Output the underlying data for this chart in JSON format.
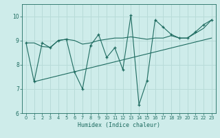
{
  "xlabel": "Humidex (Indice chaleur)",
  "bg_color": "#ceecea",
  "grid_color": "#b8dbd8",
  "line_color": "#1e6b60",
  "xlim": [
    -0.5,
    23.5
  ],
  "ylim": [
    6,
    10.5
  ],
  "yticks": [
    6,
    7,
    8,
    9,
    10
  ],
  "xticks": [
    0,
    1,
    2,
    3,
    4,
    5,
    6,
    7,
    8,
    9,
    10,
    11,
    12,
    13,
    14,
    15,
    16,
    17,
    18,
    19,
    20,
    21,
    22,
    23
  ],
  "series_main_x": [
    0,
    1,
    2,
    3,
    4,
    5,
    6,
    7,
    8,
    9,
    10,
    11,
    12,
    13,
    14,
    15,
    16,
    17,
    18,
    19,
    20,
    21,
    22,
    23
  ],
  "series_main_y": [
    8.9,
    7.3,
    8.9,
    8.7,
    9.0,
    9.05,
    7.7,
    7.0,
    8.8,
    9.25,
    8.3,
    8.7,
    7.8,
    10.05,
    6.35,
    7.35,
    9.85,
    9.55,
    9.25,
    9.1,
    9.1,
    9.35,
    9.65,
    9.85
  ],
  "series_trend_x": [
    1,
    23
  ],
  "series_trend_y": [
    7.3,
    9.1
  ],
  "series_smooth_x": [
    0,
    1,
    2,
    3,
    4,
    5,
    6,
    7,
    8,
    9,
    10,
    11,
    12,
    13,
    14,
    15,
    16,
    17,
    18,
    19,
    20,
    21,
    22,
    23
  ],
  "series_smooth_y": [
    8.9,
    8.9,
    8.75,
    8.72,
    9.0,
    9.05,
    9.0,
    8.85,
    8.9,
    9.0,
    9.05,
    9.1,
    9.1,
    9.15,
    9.1,
    9.05,
    9.1,
    9.1,
    9.2,
    9.1,
    9.1,
    9.3,
    9.5,
    9.85
  ]
}
